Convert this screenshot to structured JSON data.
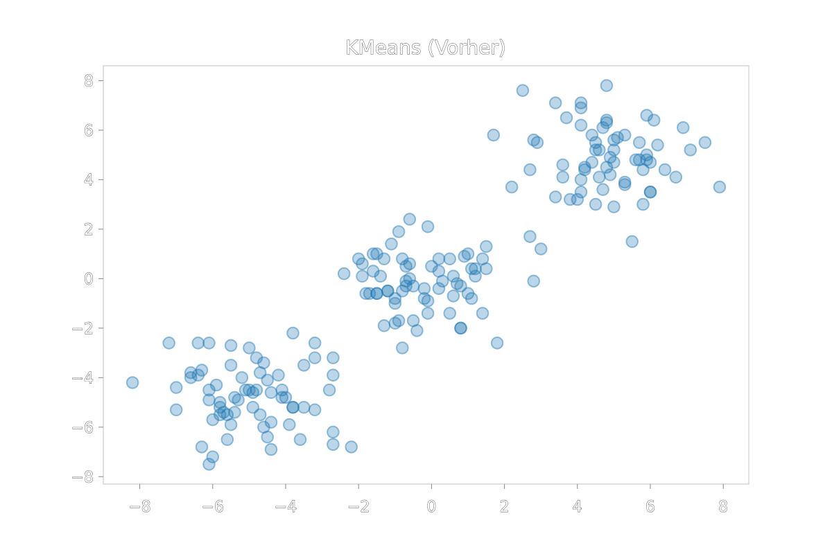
{
  "chart_data": {
    "type": "scatter",
    "title": "KMeans (Vorher)",
    "xlabel": "",
    "ylabel": "",
    "xlim": [
      -9,
      8.7
    ],
    "ylim": [
      -8.3,
      8.6
    ],
    "xticks": [
      -8,
      -6,
      -4,
      -2,
      0,
      2,
      4,
      6,
      8
    ],
    "yticks": [
      -8,
      -6,
      -4,
      -2,
      0,
      2,
      4,
      6,
      8
    ],
    "xtick_labels": [
      "−8",
      "−6",
      "−4",
      "−2",
      "0",
      "2",
      "4",
      "6",
      "8"
    ],
    "ytick_labels": [
      "−8",
      "−6",
      "−4",
      "−2",
      "0",
      "2",
      "4",
      "6",
      "8"
    ],
    "grid": false,
    "color": "#1f77b4",
    "points": [
      [
        -8.2,
        -4.2
      ],
      [
        -7.2,
        -2.6
      ],
      [
        -7.0,
        -4.4
      ],
      [
        -7.0,
        -5.3
      ],
      [
        -6.6,
        -3.8
      ],
      [
        -6.6,
        -4.0
      ],
      [
        -6.4,
        -2.6
      ],
      [
        -6.3,
        -3.7
      ],
      [
        -6.4,
        -3.9
      ],
      [
        -6.3,
        -6.8
      ],
      [
        -6.1,
        -4.5
      ],
      [
        -6.1,
        -4.9
      ],
      [
        -6.1,
        -2.6
      ],
      [
        -6.0,
        -5.7
      ],
      [
        -6.0,
        -7.2
      ],
      [
        -6.1,
        -7.5
      ],
      [
        -5.9,
        -4.3
      ],
      [
        -5.8,
        -5.0
      ],
      [
        -5.8,
        -5.2
      ],
      [
        -5.8,
        -5.5
      ],
      [
        -5.7,
        -5.4
      ],
      [
        -5.6,
        -5.5
      ],
      [
        -5.6,
        -6.5
      ],
      [
        -5.5,
        -2.7
      ],
      [
        -5.5,
        -3.5
      ],
      [
        -5.5,
        -5.9
      ],
      [
        -5.4,
        -5.4
      ],
      [
        -5.4,
        -4.8
      ],
      [
        -5.3,
        -4.9
      ],
      [
        -5.2,
        -4.0
      ],
      [
        -5.0,
        -2.8
      ],
      [
        -5.1,
        -4.5
      ],
      [
        -5.0,
        -4.5
      ],
      [
        -4.9,
        -5.2
      ],
      [
        -4.9,
        -4.6
      ],
      [
        -4.8,
        -3.2
      ],
      [
        -4.8,
        -4.5
      ],
      [
        -4.7,
        -3.8
      ],
      [
        -4.7,
        -5.5
      ],
      [
        -4.6,
        -3.4
      ],
      [
        -4.6,
        -6.0
      ],
      [
        -4.5,
        -4.1
      ],
      [
        -4.5,
        -6.4
      ],
      [
        -4.4,
        -5.8
      ],
      [
        -4.4,
        -4.6
      ],
      [
        -4.4,
        -6.9
      ],
      [
        -4.2,
        -3.9
      ],
      [
        -4.1,
        -4.5
      ],
      [
        -4.1,
        -4.8
      ],
      [
        -4.0,
        -4.8
      ],
      [
        -3.9,
        -5.9
      ],
      [
        -3.8,
        -5.2
      ],
      [
        -3.8,
        -5.2
      ],
      [
        -3.8,
        -2.2
      ],
      [
        -3.6,
        -6.5
      ],
      [
        -3.5,
        -5.2
      ],
      [
        -3.5,
        -3.5
      ],
      [
        -3.2,
        -2.6
      ],
      [
        -3.2,
        -3.2
      ],
      [
        -3.2,
        -5.3
      ],
      [
        -2.8,
        -4.5
      ],
      [
        -2.7,
        -3.9
      ],
      [
        -2.7,
        -6.2
      ],
      [
        -2.7,
        -6.7
      ],
      [
        -2.7,
        -3.2
      ],
      [
        -2.2,
        -6.8
      ],
      [
        -2.4,
        0.2
      ],
      [
        -2.0,
        0.8
      ],
      [
        -1.9,
        0.1
      ],
      [
        -1.9,
        0.6
      ],
      [
        -1.8,
        -0.6
      ],
      [
        -1.7,
        -0.6
      ],
      [
        -1.6,
        0.3
      ],
      [
        -1.6,
        1.0
      ],
      [
        -1.5,
        -0.6
      ],
      [
        -1.5,
        -0.6
      ],
      [
        -1.5,
        1.0
      ],
      [
        -1.4,
        0.1
      ],
      [
        -1.3,
        0.8
      ],
      [
        -1.3,
        -1.9
      ],
      [
        -1.2,
        -0.5
      ],
      [
        -1.2,
        -0.5
      ],
      [
        -1.1,
        1.4
      ],
      [
        -1.0,
        -0.8
      ],
      [
        -1.0,
        -1.8
      ],
      [
        -1.0,
        -1.0
      ],
      [
        -0.9,
        -1.7
      ],
      [
        -0.9,
        1.9
      ],
      [
        -0.8,
        0.8
      ],
      [
        -0.8,
        -0.5
      ],
      [
        -0.8,
        -2.8
      ],
      [
        -0.7,
        -0.3
      ],
      [
        -0.7,
        -0.1
      ],
      [
        -0.7,
        0.5
      ],
      [
        -0.6,
        2.4
      ],
      [
        -0.6,
        0.6
      ],
      [
        -0.6,
        0.0
      ],
      [
        -0.5,
        -0.3
      ],
      [
        -0.5,
        -1.7
      ],
      [
        -0.4,
        -2.1
      ],
      [
        -0.2,
        -0.4
      ],
      [
        -0.2,
        -0.8
      ],
      [
        -0.1,
        2.1
      ],
      [
        -0.1,
        -1.4
      ],
      [
        -0.1,
        -0.9
      ],
      [
        0.0,
        0.5
      ],
      [
        0.2,
        -0.4
      ],
      [
        0.2,
        0.8
      ],
      [
        0.2,
        0.3
      ],
      [
        0.3,
        -0.1
      ],
      [
        0.5,
        0.8
      ],
      [
        0.5,
        -1.4
      ],
      [
        0.6,
        0.1
      ],
      [
        0.7,
        -0.2
      ],
      [
        0.6,
        -0.7
      ],
      [
        0.8,
        -0.3
      ],
      [
        0.8,
        -2.0
      ],
      [
        0.8,
        -2.0
      ],
      [
        0.9,
        0.9
      ],
      [
        1.0,
        1.0
      ],
      [
        1.0,
        -0.6
      ],
      [
        1.1,
        -0.8
      ],
      [
        1.1,
        0.4
      ],
      [
        1.2,
        0.4
      ],
      [
        1.2,
        0.1
      ],
      [
        1.4,
        0.8
      ],
      [
        1.4,
        -1.4
      ],
      [
        1.5,
        1.3
      ],
      [
        1.5,
        0.4
      ],
      [
        1.8,
        -2.6
      ],
      [
        1.7,
        5.8
      ],
      [
        2.2,
        3.7
      ],
      [
        2.5,
        7.6
      ],
      [
        2.7,
        4.4
      ],
      [
        2.7,
        1.7
      ],
      [
        2.8,
        5.6
      ],
      [
        2.9,
        5.5
      ],
      [
        2.8,
        -0.1
      ],
      [
        3.0,
        1.2
      ],
      [
        3.4,
        3.3
      ],
      [
        3.4,
        7.1
      ],
      [
        3.6,
        4.6
      ],
      [
        3.6,
        4.1
      ],
      [
        3.7,
        6.5
      ],
      [
        3.8,
        3.2
      ],
      [
        4.0,
        3.2
      ],
      [
        4.1,
        4.0
      ],
      [
        4.1,
        7.1
      ],
      [
        4.1,
        6.9
      ],
      [
        4.1,
        6.2
      ],
      [
        4.1,
        3.5
      ],
      [
        4.2,
        4.5
      ],
      [
        4.2,
        4.4
      ],
      [
        4.4,
        5.8
      ],
      [
        4.4,
        4.7
      ],
      [
        4.5,
        5.5
      ],
      [
        4.5,
        5.2
      ],
      [
        4.6,
        5.2
      ],
      [
        4.5,
        3.0
      ],
      [
        4.6,
        4.1
      ],
      [
        4.7,
        3.6
      ],
      [
        4.7,
        6.1
      ],
      [
        4.8,
        7.8
      ],
      [
        4.8,
        4.5
      ],
      [
        4.8,
        6.4
      ],
      [
        4.8,
        6.3
      ],
      [
        4.9,
        4.2
      ],
      [
        4.9,
        4.9
      ],
      [
        5.0,
        5.2
      ],
      [
        5.0,
        4.7
      ],
      [
        5.0,
        5.6
      ],
      [
        5.1,
        5.7
      ],
      [
        5.0,
        2.9
      ],
      [
        5.3,
        5.8
      ],
      [
        5.3,
        3.9
      ],
      [
        5.3,
        3.8
      ],
      [
        5.5,
        1.5
      ],
      [
        5.6,
        4.8
      ],
      [
        5.7,
        5.5
      ],
      [
        5.7,
        4.8
      ],
      [
        5.8,
        3.0
      ],
      [
        5.8,
        4.4
      ],
      [
        5.9,
        4.8
      ],
      [
        5.9,
        6.6
      ],
      [
        5.9,
        5.0
      ],
      [
        6.0,
        3.5
      ],
      [
        6.0,
        3.5
      ],
      [
        6.0,
        4.7
      ],
      [
        6.1,
        6.4
      ],
      [
        6.2,
        5.4
      ],
      [
        6.4,
        4.4
      ],
      [
        6.7,
        4.1
      ],
      [
        6.9,
        6.1
      ],
      [
        7.1,
        5.2
      ],
      [
        7.5,
        5.5
      ],
      [
        7.9,
        3.7
      ]
    ]
  }
}
